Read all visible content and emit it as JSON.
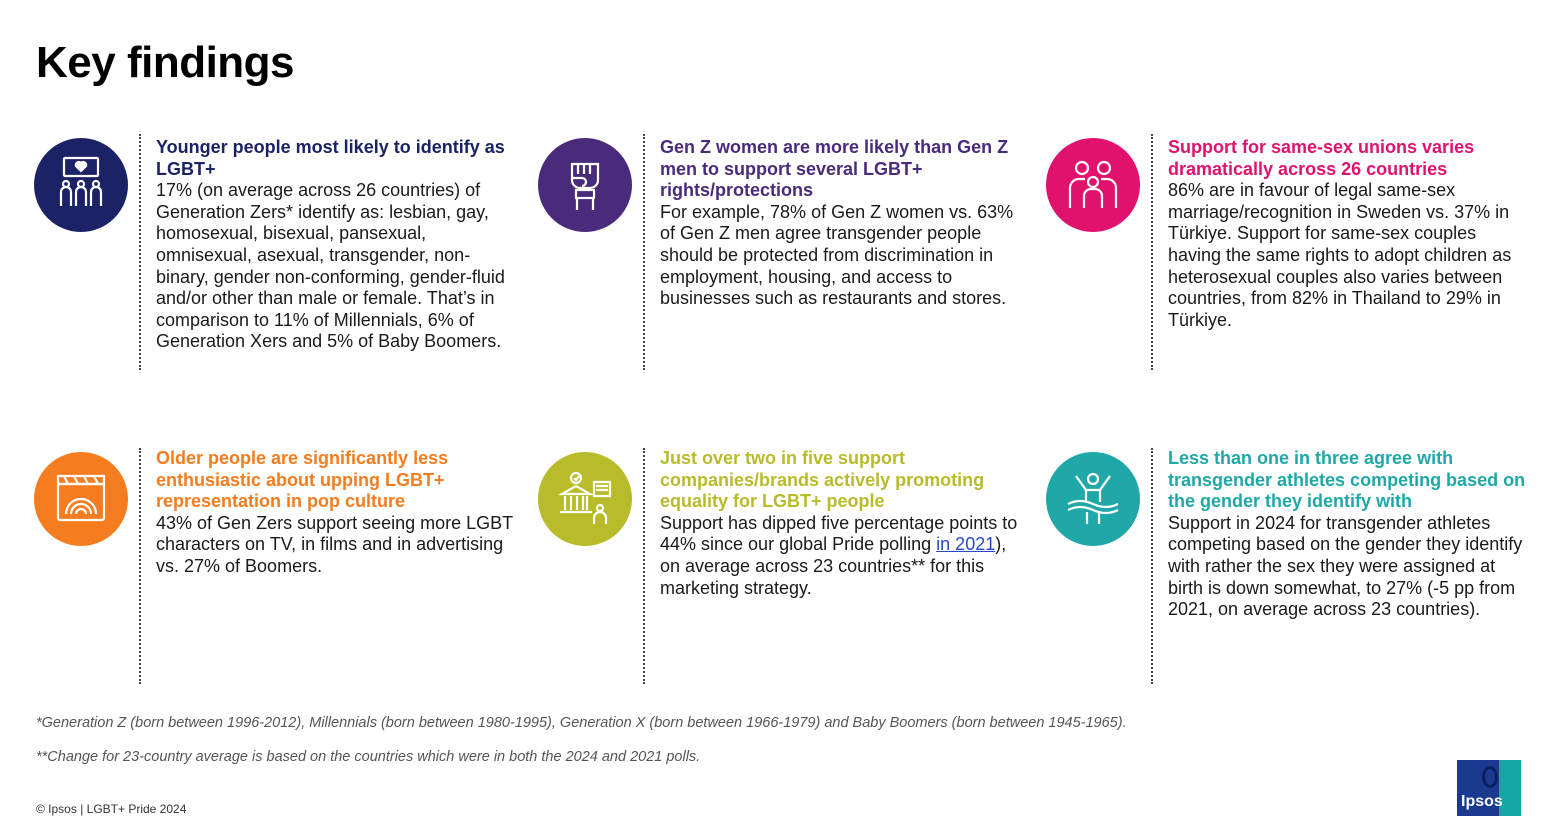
{
  "page": {
    "title": "Key findings"
  },
  "colors": {
    "navy": "#1b2366",
    "purple": "#4a2a7a",
    "magenta": "#e0126e",
    "orange": "#f57c1f",
    "olive": "#b8bb2a",
    "teal": "#20a8a8"
  },
  "findings": [
    {
      "icon": "pride-banner-people-icon",
      "headline": "Younger people most likely to identify as LGBT+",
      "body": "17% (on average across 26 countries) of Generation Zers* identify as: lesbian, gay, homosexual, bisexual, pansexual, omnisexual, asexual, transgender, non-binary, gender non-conforming, gender-fluid and/or other than male or female. That’s in comparison to 11% of Millennials, 6% of Generation Xers and 5% of Baby Boomers."
    },
    {
      "icon": "raised-fist-icon",
      "headline": "Gen Z women are more likely than Gen Z men to support several LGBT+ rights/protections",
      "body": "For example, 78% of Gen Z women vs. 63% of Gen Z men agree transgender people should be protected from discrimination in employment, housing, and access to businesses such as restaurants and stores."
    },
    {
      "icon": "family-icon",
      "headline": "Support for same-sex unions varies dramatically across 26 countries",
      "body": "86% are in favour of legal same-sex marriage/recognition in Sweden vs. 37% in Türkiye. Support for same-sex couples having the same rights to adopt children as heterosexual couples also varies between countries, from 82% in Thailand to 29% in Türkiye."
    },
    {
      "icon": "rainbow-clapperboard-icon",
      "headline": "Older people are significantly less enthusiastic about upping LGBT+ representation in pop culture",
      "body": "43% of Gen Zers support seeing more LGBT characters on TV, in films and in advertising vs. 27% of Boomers."
    },
    {
      "icon": "institution-flag-icon",
      "headline": "Just over two in five support companies/brands actively promoting equality for LGBT+ people",
      "body_before": "Support has dipped five percentage points to 44% since our global Pride polling ",
      "body_link": "in 2021",
      "body_after": "), on average across 23 countries** for this marketing strategy."
    },
    {
      "icon": "athlete-finish-line-icon",
      "headline": "Less than one in three agree with transgender athletes competing based on the gender they identify with",
      "body": "Support in 2024 for transgender athletes competing based on the gender they identify with rather the sex they were assigned at birth is down somewhat, to 27% (-5 pp from 2021, on average across 23 countries)."
    }
  ],
  "footnotes": [
    "*Generation Z (born between 1996-2012), Millennials (born between 1980-1995), Generation X (born between 1966-1979) and Baby Boomers (born between 1945-1965).",
    "**Change for 23-country average is based on the countries which were in both the 2024 and 2021 polls."
  ],
  "footer": {
    "copyright": "© Ipsos | LGBT+ Pride 2024",
    "logo_text": "Ipsos"
  }
}
